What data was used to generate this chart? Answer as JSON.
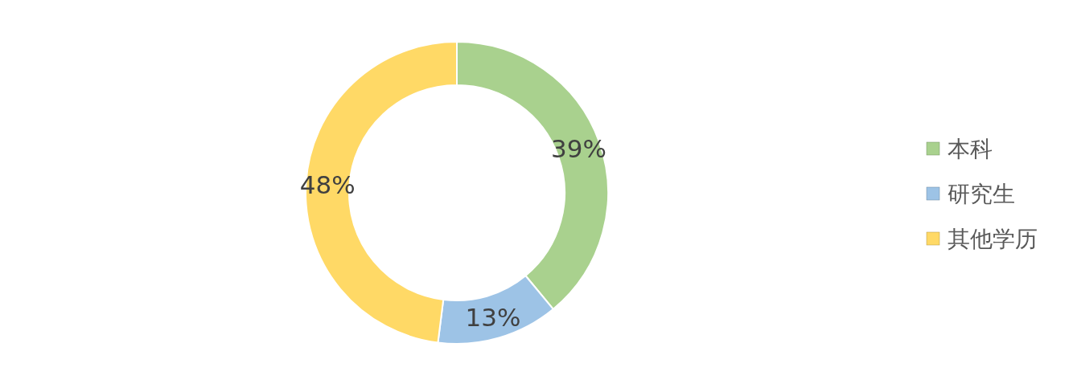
{
  "chart_data": {
    "type": "donut",
    "categories": [
      "本科",
      "研究生",
      "其他学历"
    ],
    "values": [
      39,
      13,
      48
    ],
    "colors": [
      "#a9d18e",
      "#9dc3e6",
      "#ffd966"
    ],
    "value_labels": [
      "39%",
      "13%",
      "48%"
    ],
    "legend": "right"
  }
}
